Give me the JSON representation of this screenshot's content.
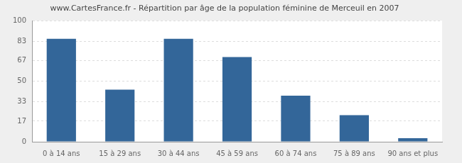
{
  "chart_data": {
    "type": "bar",
    "title": "www.CartesFrance.fr - Répartition par âge de la population féminine de Merceuil en 2007",
    "categories": [
      "0 à 14 ans",
      "15 à 29 ans",
      "30 à 44 ans",
      "45 à 59 ans",
      "60 à 74 ans",
      "75 à 89 ans",
      "90 ans et plus"
    ],
    "values": [
      85,
      43,
      85,
      70,
      38,
      22,
      3
    ],
    "color": "#336699",
    "ylim": [
      0,
      100
    ],
    "yticks": [
      0,
      17,
      33,
      50,
      67,
      83,
      100
    ],
    "grid": true
  }
}
